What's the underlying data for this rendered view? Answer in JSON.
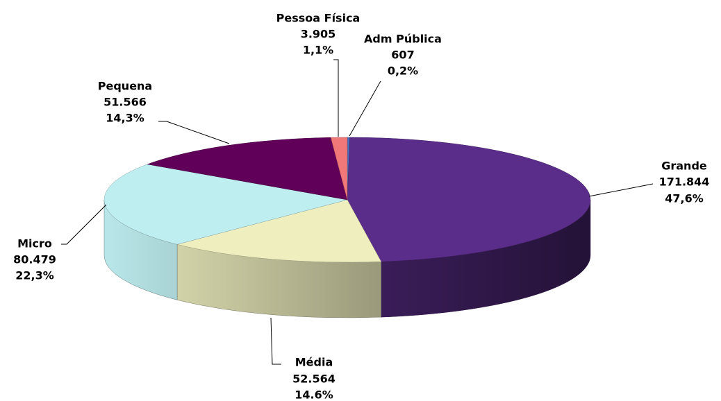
{
  "chart_data": {
    "type": "pie3d",
    "categories": [
      "Adm Pública",
      "Grande",
      "Média",
      "Micro",
      "Pequena",
      "Pessoa Física"
    ],
    "values": [
      607,
      171844,
      52564,
      80479,
      51566,
      3905
    ],
    "value_labels": [
      "607",
      "171.844",
      "52.564",
      "80.479",
      "51.566",
      "3.905"
    ],
    "percent_labels": [
      "0,2%",
      "47,6%",
      "14.6%",
      "22,3%",
      "14,3%",
      "1,1%"
    ],
    "colors": [
      "#4a6fc0",
      "#5b2d8a",
      "#eeeebf",
      "#bfeef0",
      "#600058",
      "#f07878"
    ]
  }
}
